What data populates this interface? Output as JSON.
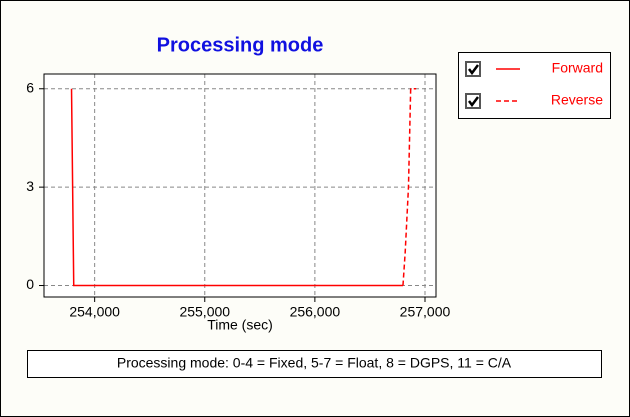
{
  "chart_data": {
    "type": "line",
    "title": "Processing mode",
    "x_label": "Time (sec)",
    "note": "Processing mode: 0-4 = Fixed, 5-7 = Float, 8 = DGPS, 11 = C/A",
    "series": [
      {
        "name": "Forward",
        "color": "#ff0000",
        "line_style": "solid",
        "checked": true,
        "x": [
          253790,
          253795,
          253810,
          256800
        ],
        "values": [
          6,
          4.5,
          0,
          0
        ]
      },
      {
        "name": "Reverse",
        "color": "#ff0000",
        "line_style": "dashed",
        "checked": true,
        "x": [
          256800,
          256820,
          256850,
          256870,
          256920
        ],
        "values": [
          0,
          1,
          3,
          6,
          6
        ]
      }
    ],
    "xlim": [
      253540,
      257100
    ],
    "xticks": [
      {
        "value": 254000,
        "label": "254,000"
      },
      {
        "value": 255000,
        "label": "255,000"
      },
      {
        "value": 256000,
        "label": "256,000"
      },
      {
        "value": 257000,
        "label": "257,000"
      }
    ],
    "ylim": [
      -0.35,
      6.45
    ],
    "yticks": [
      0,
      3,
      6
    ],
    "grid": true,
    "legend": "top-right"
  }
}
